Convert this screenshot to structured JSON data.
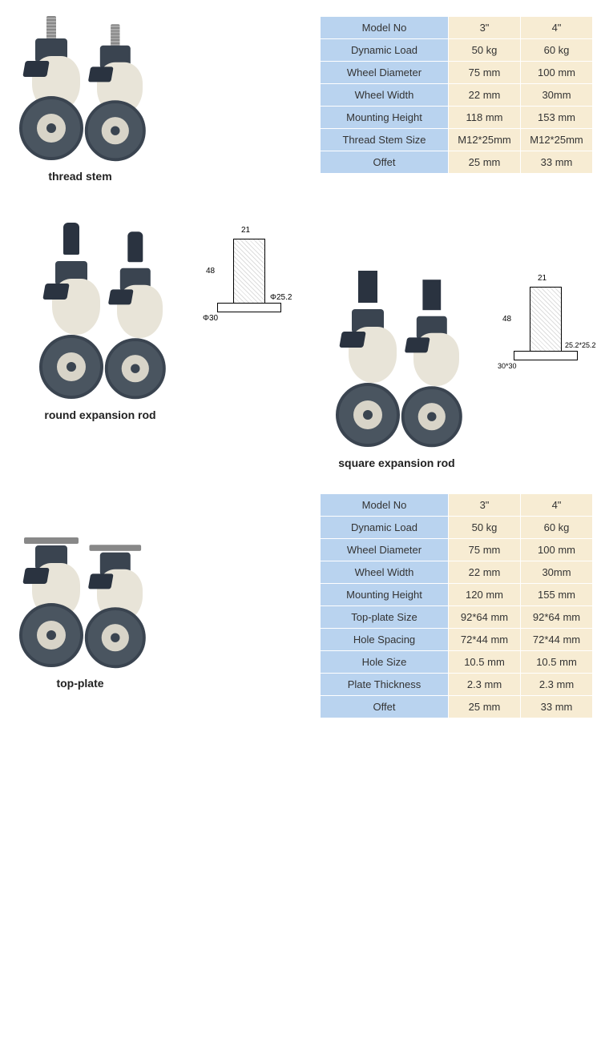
{
  "colors": {
    "header_bg": "#b9d3ef",
    "value_bg": "#f7ecd3",
    "border": "#ffffff",
    "text": "#333333",
    "wheel": "#4a5560",
    "body_light": "#e8e4d8",
    "body_dark": "#3a4450"
  },
  "table1": {
    "headers": [
      "Model No",
      "Dynamic Load",
      "Wheel Diameter",
      "Wheel Width",
      "Mounting Height",
      "Thread Stem Size",
      "Offet"
    ],
    "col3": [
      "3\"",
      "50 kg",
      "75 mm",
      "22 mm",
      "118 mm",
      "M12*25mm",
      "25 mm"
    ],
    "col4": [
      "4\"",
      "60 kg",
      "100 mm",
      "30mm",
      "153 mm",
      "M12*25mm",
      "33 mm"
    ]
  },
  "labels": {
    "thread_stem": "thread stem",
    "round_rod": "round expansion rod",
    "square_rod": "square expansion rod",
    "top_plate": "top-plate"
  },
  "diagram_round": {
    "top_w": "21",
    "side_h": "48",
    "dia_inner": "Φ25.2",
    "dia_outer": "Φ30"
  },
  "diagram_square": {
    "top_w": "21",
    "side_h": "48",
    "inner": "25.2*25.2",
    "outer": "30*30"
  },
  "table2": {
    "headers": [
      "Model No",
      "Dynamic Load",
      "Wheel Diameter",
      "Wheel Width",
      "Mounting Height",
      "Top-plate Size",
      "Hole Spacing",
      "Hole Size",
      "Plate Thickness",
      "Offet"
    ],
    "col3": [
      "3\"",
      "50 kg",
      "75 mm",
      "22 mm",
      "120 mm",
      "92*64 mm",
      "72*44 mm",
      "10.5 mm",
      "2.3 mm",
      "25 mm"
    ],
    "col4": [
      "4\"",
      "60 kg",
      "100 mm",
      "30mm",
      "155 mm",
      "92*64 mm",
      "72*44 mm",
      "10.5 mm",
      "2.3 mm",
      "33 mm"
    ]
  }
}
